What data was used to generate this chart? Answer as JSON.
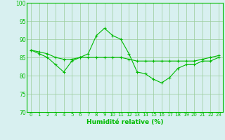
{
  "line1_x": [
    0,
    1,
    2,
    3,
    4,
    5,
    6,
    7,
    8,
    9,
    10,
    11,
    12,
    13,
    14,
    15,
    16,
    17,
    18,
    19,
    20,
    21,
    22,
    23
  ],
  "line1_y": [
    87,
    86,
    85,
    83,
    81,
    84,
    85,
    86,
    91,
    93,
    91,
    90,
    86,
    81,
    80.5,
    79,
    78,
    79.5,
    82,
    83,
    83,
    84,
    84,
    85
  ],
  "line2_x": [
    0,
    1,
    2,
    3,
    4,
    5,
    6,
    7,
    8,
    9,
    10,
    11,
    12,
    13,
    14,
    15,
    16,
    17,
    18,
    19,
    20,
    21,
    22,
    23
  ],
  "line2_y": [
    87,
    86.5,
    86,
    85,
    84.5,
    84.5,
    85,
    85,
    85,
    85,
    85,
    85,
    84.5,
    84,
    84,
    84,
    84,
    84,
    84,
    84,
    84,
    84.5,
    85,
    85.5
  ],
  "line_color": "#00bb00",
  "bg_color": "#d8f0f0",
  "grid_color": "#99cc99",
  "xlabel": "Humidité relative (%)",
  "ylim": [
    70,
    100
  ],
  "xlim": [
    -0.5,
    23.5
  ],
  "yticks": [
    70,
    75,
    80,
    85,
    90,
    95,
    100
  ],
  "xticks": [
    0,
    1,
    2,
    3,
    4,
    5,
    6,
    7,
    8,
    9,
    10,
    11,
    12,
    13,
    14,
    15,
    16,
    17,
    18,
    19,
    20,
    21,
    22,
    23
  ]
}
